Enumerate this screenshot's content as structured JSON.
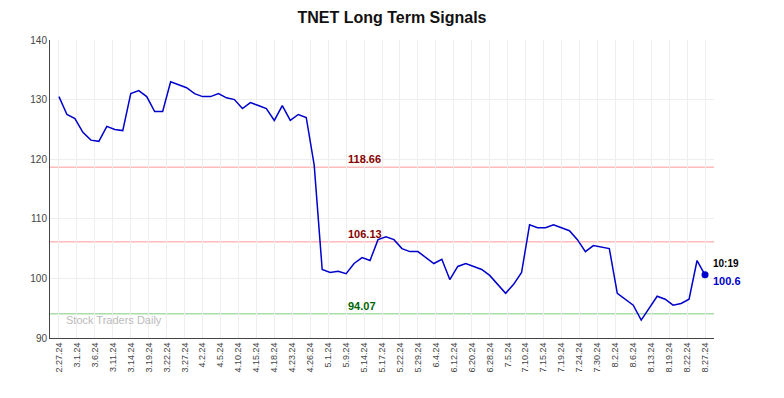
{
  "chart_data": {
    "type": "line",
    "title": "TNET Long Term Signals",
    "x": [
      0,
      0.4444,
      0.8889,
      1.3333,
      1.7778,
      2.2222,
      2.6667,
      3.1111,
      3.5556,
      4,
      4.4444,
      4.8889,
      5.3333,
      5.7778,
      6.2222,
      6.6667,
      7.1111,
      7.5556,
      8,
      8.4444,
      8.8889,
      9.3333,
      9.7778,
      10.2222,
      10.6667,
      11.1111,
      11.5556,
      12,
      12.4444,
      12.8889,
      13.3333,
      13.7778,
      14.2222,
      14.6667,
      15.1111,
      15.5556,
      16,
      16.4444,
      16.8889,
      17.3333,
      17.7778,
      18.2222,
      18.6667,
      19.1111,
      19.5556,
      20,
      20.4444,
      20.8889,
      21.3333,
      21.7778,
      22.2222,
      22.6667,
      23.1111,
      23.5556,
      24,
      24.4444,
      24.8889,
      25.3333,
      25.7778,
      26.2222,
      26.6667,
      27.1111,
      27.5556,
      28,
      28.4444,
      28.8889,
      29.3333,
      29.7778,
      30.2222,
      30.6667,
      31.1111,
      31.5556,
      32,
      32.4444,
      32.8889,
      33.3333,
      33.7778,
      34.2222,
      34.6667,
      35.1111,
      35.5556,
      36
    ],
    "values": [
      130.5,
      127.5,
      126.8,
      124.5,
      123.2,
      123.0,
      125.5,
      125.0,
      124.8,
      131.0,
      131.5,
      130.5,
      128.0,
      128.0,
      133.0,
      132.5,
      132.0,
      131.0,
      130.5,
      130.5,
      131.0,
      130.3,
      130.0,
      128.5,
      129.5,
      129.0,
      128.5,
      126.5,
      129.0,
      126.5,
      127.5,
      127.0,
      119.0,
      101.5,
      101.0,
      101.2,
      100.8,
      102.5,
      103.5,
      103.0,
      106.5,
      107.0,
      106.5,
      105.0,
      104.5,
      104.5,
      103.5,
      102.5,
      103.2,
      99.8,
      102.0,
      102.5,
      102.0,
      101.5,
      100.5,
      99.0,
      97.5,
      99.0,
      101.0,
      109.0,
      108.5,
      108.5,
      109.0,
      108.5,
      108.0,
      106.5,
      104.5,
      105.5,
      105.2,
      105.0,
      97.5,
      96.5,
      95.5,
      93.0,
      95.0,
      97.0,
      96.5,
      95.5,
      95.8,
      96.5,
      103.0,
      100.6
    ],
    "color": "#0000cc",
    "marker": "circle",
    "xlim": [
      -0.5,
      36.5
    ],
    "xticks": [
      {
        "value": 0,
        "label": "2.27.24"
      },
      {
        "value": 1,
        "label": "3.1.24"
      },
      {
        "value": 2,
        "label": "3.6.24"
      },
      {
        "value": 3,
        "label": "3.11.24"
      },
      {
        "value": 4,
        "label": "3.14.24"
      },
      {
        "value": 5,
        "label": "3.19.24"
      },
      {
        "value": 6,
        "label": "3.22.24"
      },
      {
        "value": 7,
        "label": "3.27.24"
      },
      {
        "value": 8,
        "label": "4.2.24"
      },
      {
        "value": 9,
        "label": "4.5.24"
      },
      {
        "value": 10,
        "label": "4.10.24"
      },
      {
        "value": 11,
        "label": "4.15.24"
      },
      {
        "value": 12,
        "label": "4.18.24"
      },
      {
        "value": 13,
        "label": "4.23.24"
      },
      {
        "value": 14,
        "label": "4.26.24"
      },
      {
        "value": 15,
        "label": "5.1.24"
      },
      {
        "value": 16,
        "label": "5.9.24"
      },
      {
        "value": 17,
        "label": "5.14.24"
      },
      {
        "value": 18,
        "label": "5.17.24"
      },
      {
        "value": 19,
        "label": "5.22.24"
      },
      {
        "value": 20,
        "label": "5.29.24"
      },
      {
        "value": 21,
        "label": "6.4.24"
      },
      {
        "value": 22,
        "label": "6.12.24"
      },
      {
        "value": 23,
        "label": "6.20.24"
      },
      {
        "value": 24,
        "label": "6.28.24"
      },
      {
        "value": 25,
        "label": "7.5.24"
      },
      {
        "value": 26,
        "label": "7.10.24"
      },
      {
        "value": 27,
        "label": "7.15.24"
      },
      {
        "value": 28,
        "label": "7.19.24"
      },
      {
        "value": 29,
        "label": "7.24.24"
      },
      {
        "value": 30,
        "label": "7.30.24"
      },
      {
        "value": 31,
        "label": "8.2.24"
      },
      {
        "value": 32,
        "label": "8.6.24"
      },
      {
        "value": 33,
        "label": "8.13.24"
      },
      {
        "value": 34,
        "label": "8.19.24"
      },
      {
        "value": 35,
        "label": "8.22.24"
      },
      {
        "value": 36,
        "label": "8.27.24"
      }
    ],
    "ylim": [
      90,
      140
    ],
    "yticks": [
      90,
      100,
      110,
      120,
      130,
      140
    ],
    "grid": true,
    "hlines": [
      {
        "value": 118.66,
        "color": "#ffbbbb"
      },
      {
        "value": 106.13,
        "color": "#ffbbbb"
      },
      {
        "value": 94.07,
        "color": "#aaddaa"
      }
    ],
    "annotations": [
      {
        "text": "118.66",
        "x": 16,
        "y": 118.66,
        "color": "#880000"
      },
      {
        "text": "106.13",
        "x": 16,
        "y": 106.13,
        "color": "#880000"
      },
      {
        "text": "94.07",
        "x": 16,
        "y": 94.07,
        "color": "#006600"
      },
      {
        "text": "10:19",
        "x": 36,
        "y": 100.6,
        "color": "#000000"
      },
      {
        "text": "100.6",
        "x": 36,
        "y": 100.6,
        "color": "#0000cc"
      },
      {
        "text": "Stock Traders Daily",
        "x": 0.3,
        "y": 93.07,
        "color": "#bbbbbb"
      }
    ]
  }
}
